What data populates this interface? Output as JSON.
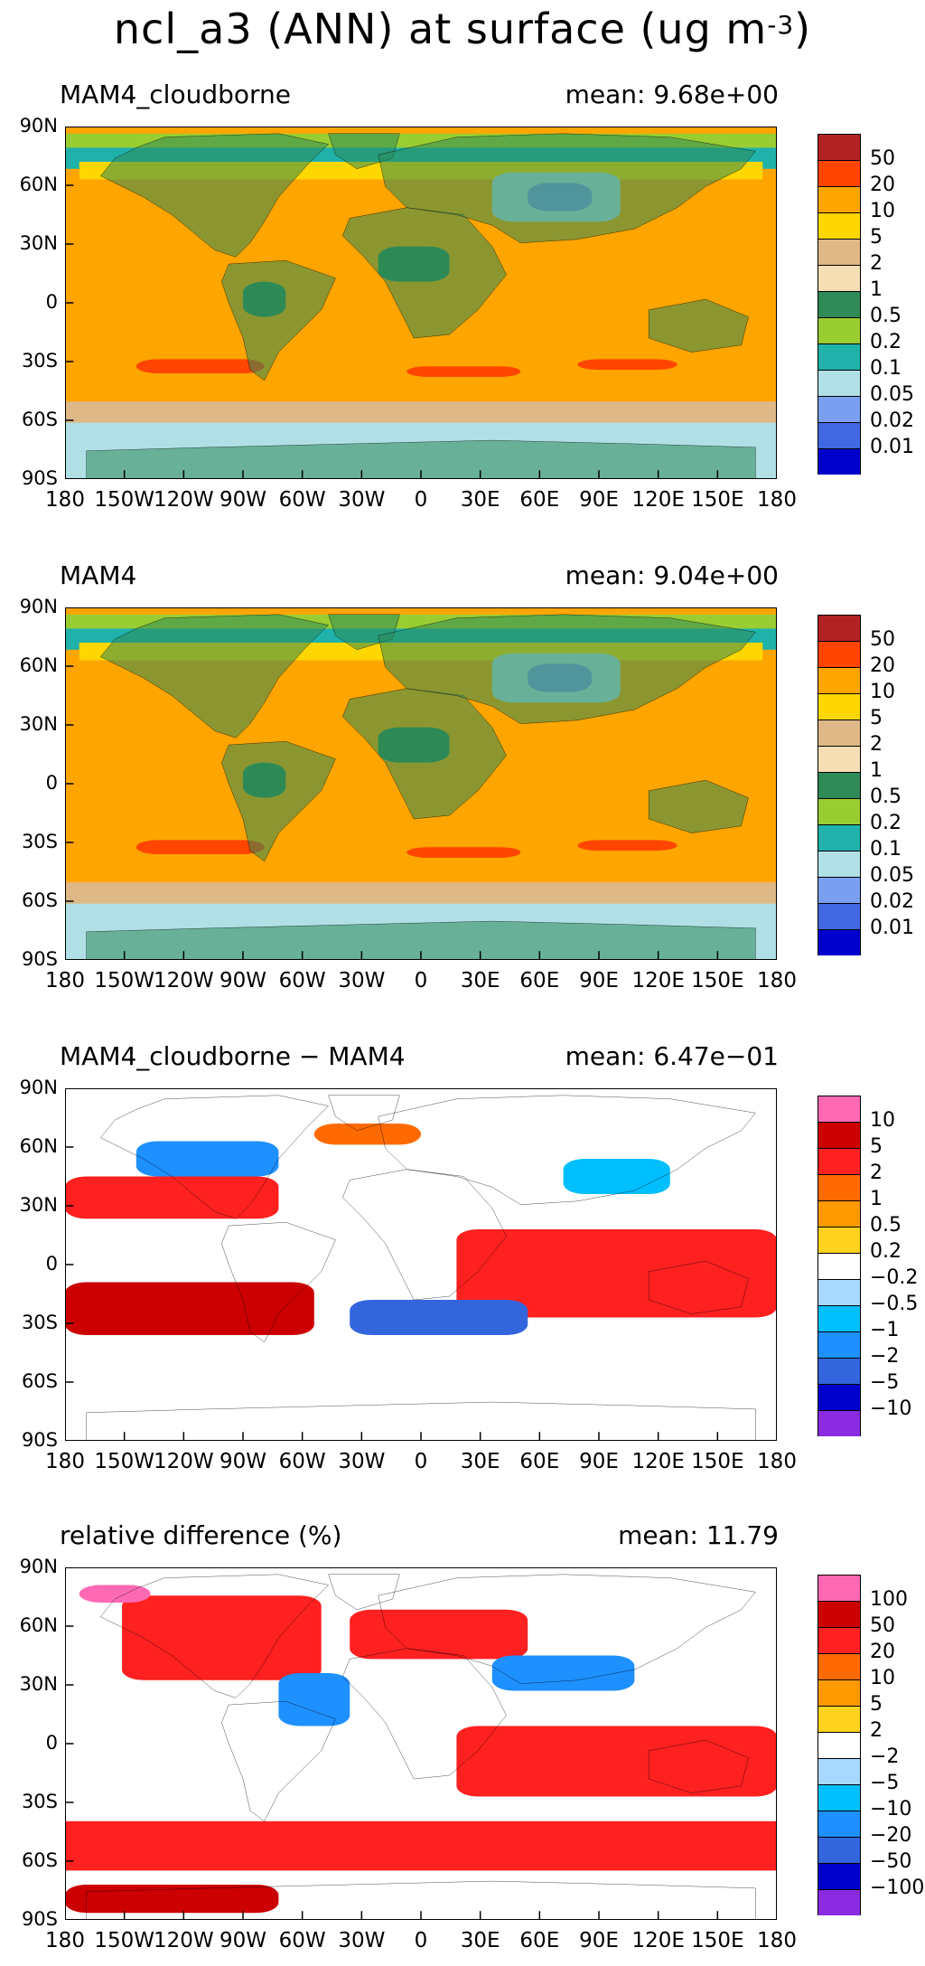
{
  "figure": {
    "title_main": "ncl_a3 (ANN) at surface (ug m",
    "title_sup": "-3",
    "title_end": ")"
  },
  "lat_ticks": [
    "90N",
    "60N",
    "30N",
    "0",
    "30S",
    "60S",
    "90S"
  ],
  "lon_ticks": [
    "180",
    "150W",
    "120W",
    "90W",
    "60W",
    "30W",
    "0",
    "30E",
    "60E",
    "90E",
    "120E",
    "150E",
    "180"
  ],
  "panels": [
    {
      "label": "MAM4_cloudborne",
      "mean": "mean: 9.68e+00",
      "colorbar": {
        "labels": [
          "50",
          "20",
          "10",
          "5",
          "2",
          "1",
          "0.5",
          "0.2",
          "0.1",
          "0.05",
          "0.02",
          "0.01"
        ],
        "colors": [
          "#b22222",
          "#ff4500",
          "#ffa500",
          "#ffd700",
          "#deb887",
          "#f5deb3",
          "#2e8b57",
          "#9acd32",
          "#20b2aa",
          "#b0e0e6",
          "#7b9ff0",
          "#4169e1",
          "#0000cd"
        ]
      }
    },
    {
      "label": "MAM4",
      "mean": "mean: 9.04e+00",
      "colorbar": {
        "labels": [
          "50",
          "20",
          "10",
          "5",
          "2",
          "1",
          "0.5",
          "0.2",
          "0.1",
          "0.05",
          "0.02",
          "0.01"
        ],
        "colors": [
          "#b22222",
          "#ff4500",
          "#ffa500",
          "#ffd700",
          "#deb887",
          "#f5deb3",
          "#2e8b57",
          "#9acd32",
          "#20b2aa",
          "#b0e0e6",
          "#7b9ff0",
          "#4169e1",
          "#0000cd"
        ]
      }
    },
    {
      "label": "MAM4_cloudborne − MAM4",
      "mean": "mean: 6.47e−01",
      "colorbar": {
        "labels": [
          "10",
          "5",
          "2",
          "1",
          "0.5",
          "0.2",
          "−0.2",
          "−0.5",
          "−1",
          "−2",
          "−5",
          "−10"
        ],
        "colors": [
          "#ff69b4",
          "#cc0000",
          "#ff2020",
          "#ff6a00",
          "#ff9a00",
          "#ffd21f",
          "#ffffff",
          "#a8d8ff",
          "#00bfff",
          "#1e90ff",
          "#3366dd",
          "#0000cd",
          "#8a2be2"
        ]
      }
    },
    {
      "label": "relative difference (%)",
      "mean": "mean: 11.79",
      "colorbar": {
        "labels": [
          "100",
          "50",
          "20",
          "10",
          "5",
          "2",
          "−2",
          "−5",
          "−10",
          "−20",
          "−50",
          "−100"
        ],
        "colors": [
          "#ff69b4",
          "#cc0000",
          "#ff2020",
          "#ff6a00",
          "#ff9a00",
          "#ffd21f",
          "#ffffff",
          "#a8d8ff",
          "#00bfff",
          "#1e90ff",
          "#3366dd",
          "#0000cd",
          "#8a2be2"
        ]
      }
    }
  ]
}
